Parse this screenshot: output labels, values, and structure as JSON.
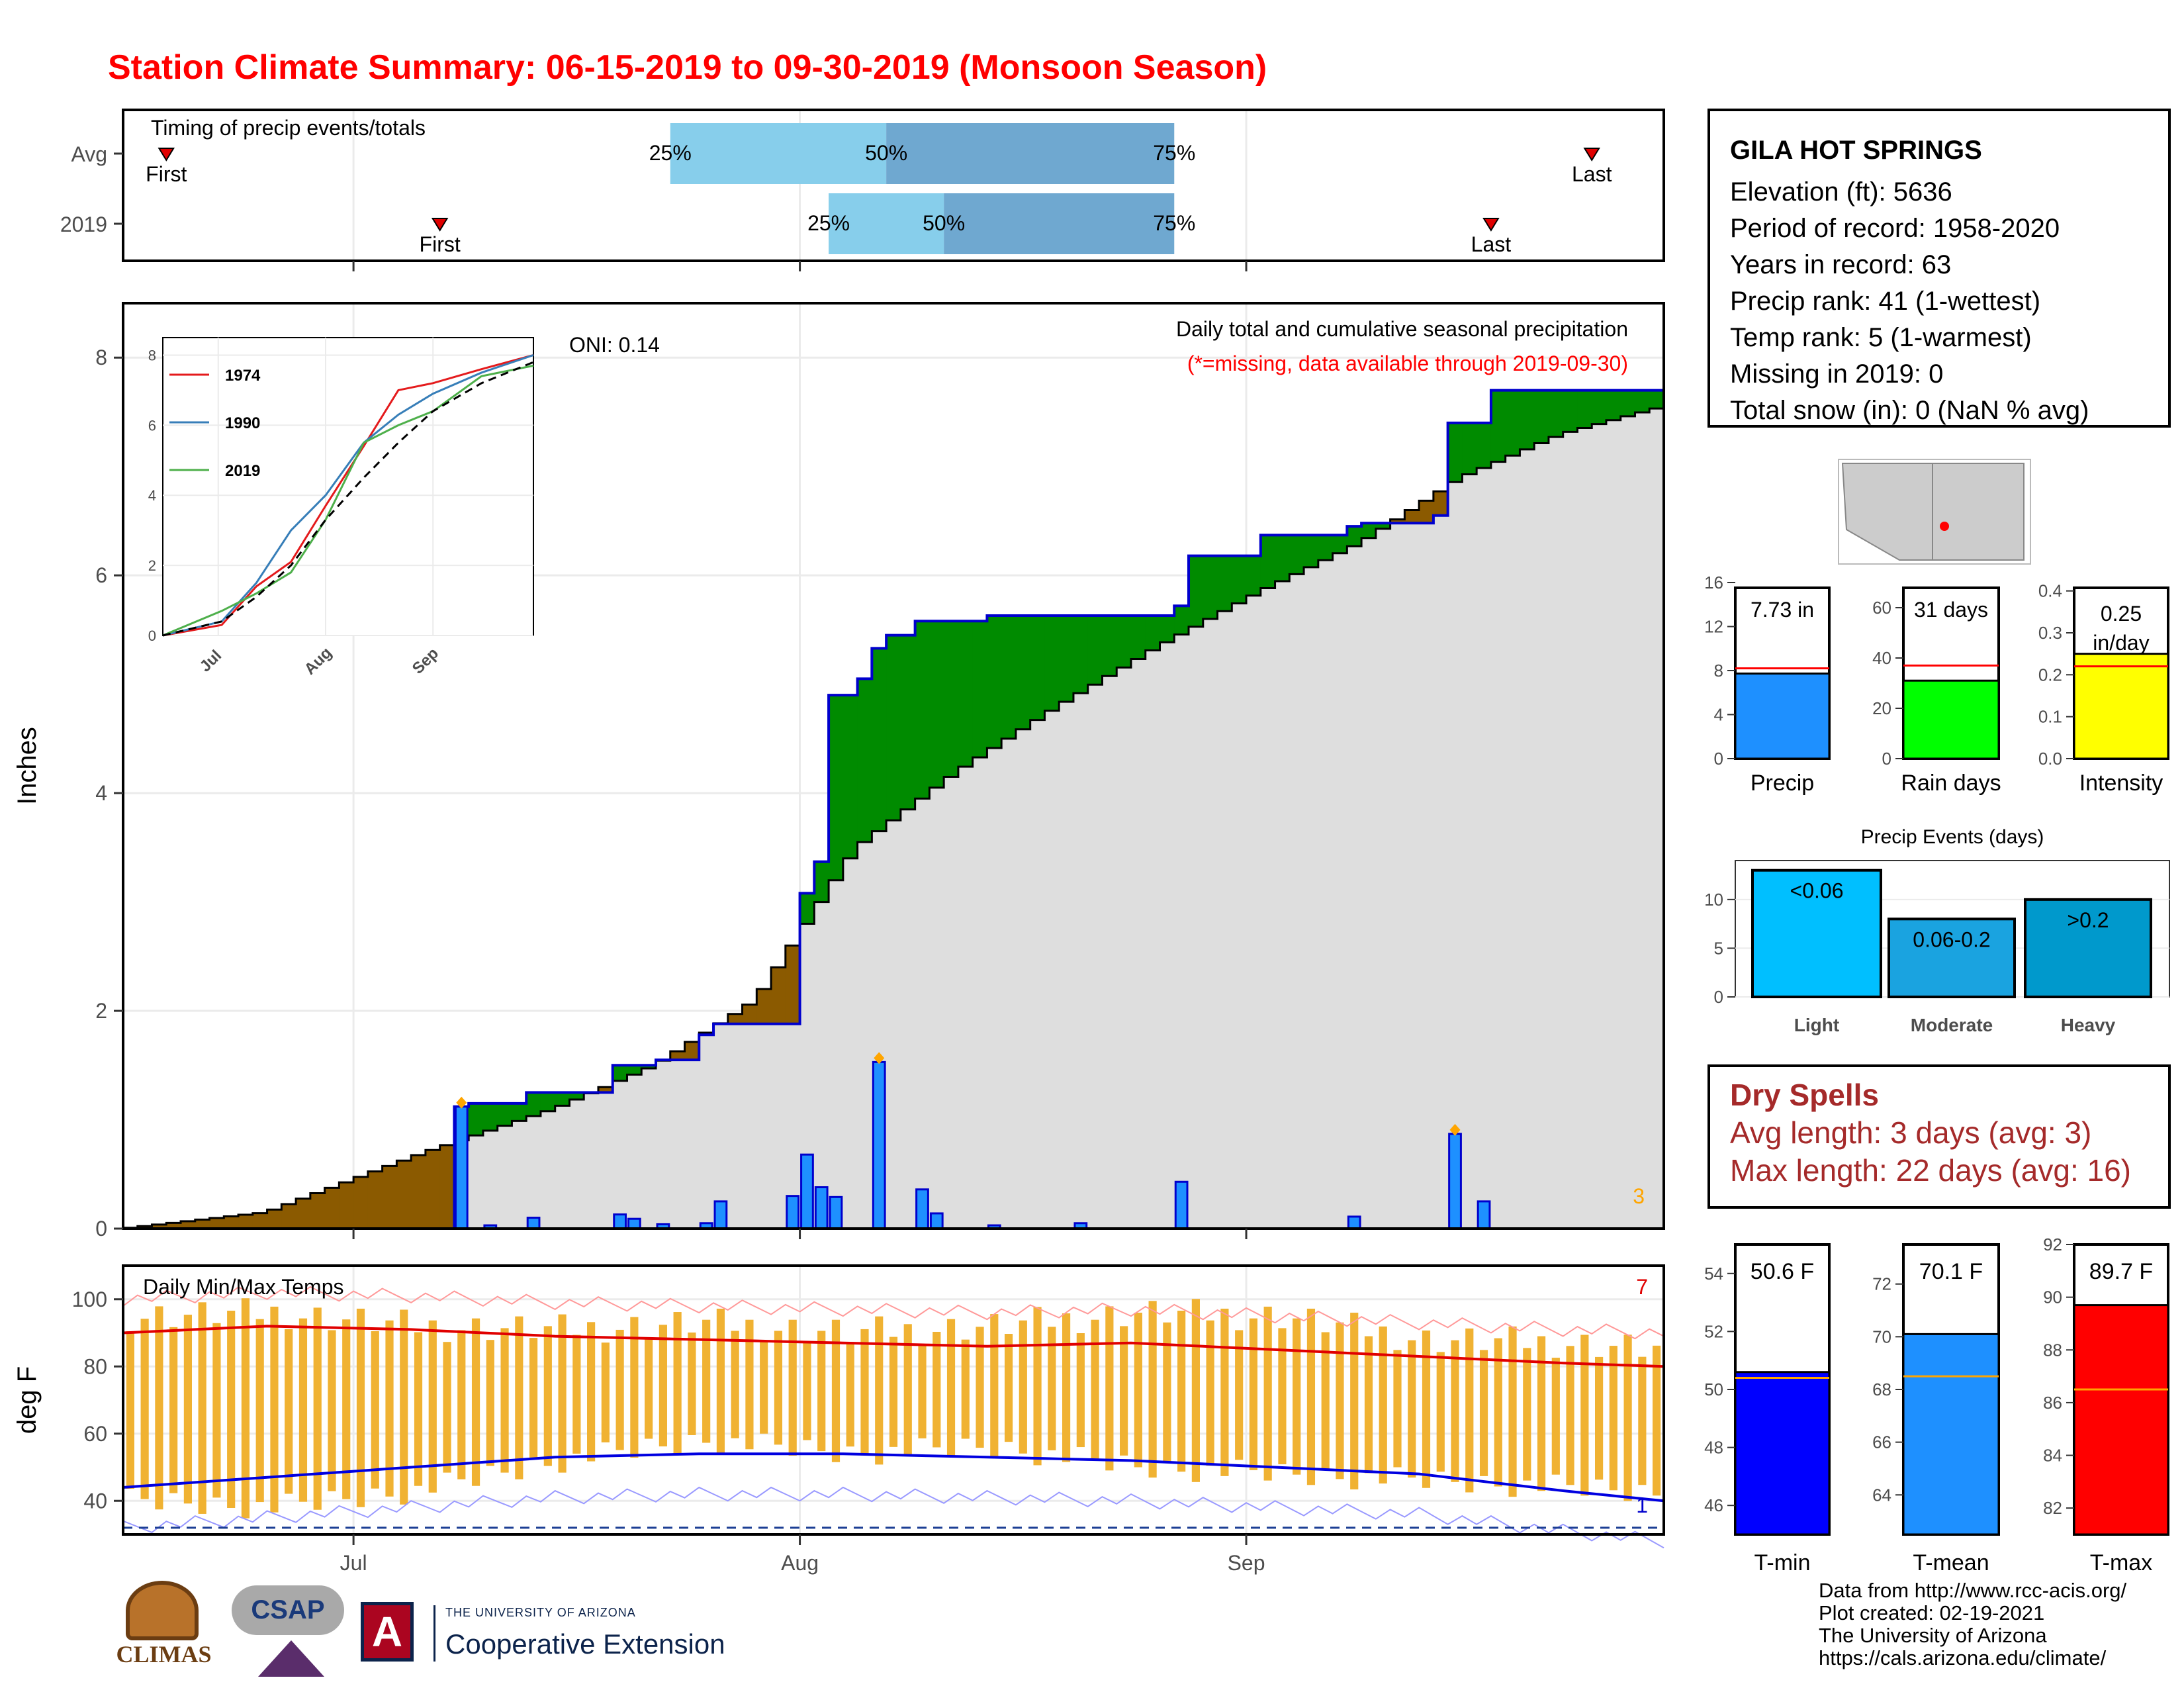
{
  "title": "Station Climate Summary: 06-15-2019 to 09-30-2019 (Monsoon Season)",
  "colors": {
    "title": "#ff0000",
    "deficit": "#8B5A00",
    "surplus": "#008B00",
    "climatology_fill": "#E0E0E0",
    "daily_bar": "#1E90FF",
    "missing_flag": "#FFA500",
    "temp_range": "#F0B232"
  },
  "timing": {
    "title": "Timing of precip events/totals",
    "rows": [
      {
        "label": "Avg",
        "first": "First",
        "last": "Last",
        "p25": "25%",
        "p50": "50%",
        "p75": "75%"
      },
      {
        "label": "2019",
        "first": "First",
        "last": "Last",
        "p25": "25%",
        "p50": "50%",
        "p75": "75%"
      }
    ]
  },
  "precip_panel": {
    "oni": "ONI: 0.14",
    "caption": "Daily total and cumulative seasonal precipitation",
    "caption_red": "(*=missing, data available through 2019-09-30)",
    "ylabel": "Inches",
    "yticks": [
      "0",
      "2",
      "4",
      "6",
      "8"
    ],
    "corner_count": "3",
    "inset": {
      "legend": [
        "1974",
        "1990",
        "2019"
      ],
      "legend_colors": [
        "#E41A1C",
        "#377EB8",
        "#4DAF4A"
      ],
      "yticks": [
        "0",
        "2",
        "4",
        "6",
        "8"
      ],
      "xticks": [
        "Jul",
        "Aug",
        "Sep"
      ]
    }
  },
  "temp_panel": {
    "title": "Daily Min/Max Temps",
    "ylabel": "deg F",
    "yticks": [
      "40",
      "60",
      "80",
      "100"
    ],
    "count_high": "7",
    "count_low": "1"
  },
  "xaxis": {
    "ticks": [
      "Jul",
      "Aug",
      "Sep"
    ]
  },
  "station": {
    "name": "GILA HOT SPRINGS",
    "lines": [
      "Elevation (ft): 5636",
      "Period of record: 1958-2020",
      "Years in record: 63",
      "Precip rank: 41 (1-wettest)",
      "Temp rank: 5 (1-warmest)",
      "Missing in 2019: 0",
      "Total snow (in): 0 (NaN % avg)"
    ]
  },
  "gauges": [
    {
      "label": "Precip",
      "value_text": "7.73 in",
      "yticks": [
        "0",
        "4",
        "8",
        "12",
        "16"
      ],
      "color": "#1E90FF"
    },
    {
      "label": "Rain days",
      "value_text": "31 days",
      "yticks": [
        "0",
        "20",
        "40",
        "60"
      ],
      "color": "#00FF00"
    },
    {
      "label": "Intensity",
      "value_text": "0.25 in/day",
      "yticks": [
        "0.0",
        "0.1",
        "0.2",
        "0.3",
        "0.4"
      ],
      "color": "#FFFF00"
    }
  ],
  "events": {
    "title": "Precip Events (days)",
    "yticks": [
      "0",
      "5",
      "10"
    ],
    "bars": [
      {
        "label": "Light",
        "text": "<0.06",
        "color": "#00BFFF"
      },
      {
        "label": "Moderate",
        "text": "0.06-0.2",
        "color": "#1AA3E0"
      },
      {
        "label": "Heavy",
        "text": ">0.2",
        "color": "#0099CC"
      }
    ]
  },
  "dry_spells": {
    "title": "Dry Spells",
    "avg": "Avg length: 3 days (avg: 3)",
    "max": "Max length: 22 days (avg: 16)"
  },
  "temp_gauges": [
    {
      "label": "T-min",
      "value_text": "50.6 F",
      "yticks": [
        "46",
        "48",
        "50",
        "52",
        "54"
      ],
      "color": "#0000FF"
    },
    {
      "label": "T-mean",
      "value_text": "70.1 F",
      "yticks": [
        "64",
        "66",
        "68",
        "70",
        "72"
      ],
      "color": "#1E90FF"
    },
    {
      "label": "T-max",
      "value_text": "89.7 F",
      "yticks": [
        "82",
        "84",
        "86",
        "88",
        "90",
        "92"
      ],
      "color": "#FF0000"
    }
  ],
  "credits": [
    "Data from http://www.rcc-acis.org/",
    "Plot created: 02-19-2021",
    "The University of Arizona",
    "https://cals.arizona.edu/climate/"
  ],
  "logos": {
    "climas": "CLIMAS",
    "csap": "CSAP",
    "ua_small": "THE UNIVERSITY OF ARIZONA",
    "ua_big": "Cooperative Extension"
  },
  "chart_data": [
    {
      "type": "bar",
      "name": "timing",
      "categories": [
        "Avg",
        "2019"
      ],
      "series": [
        {
          "name": "First",
          "values": [
            "2019-06-18",
            "2019-07-07"
          ]
        },
        {
          "name": "25%",
          "values": [
            "2019-07-23",
            "2019-08-03"
          ]
        },
        {
          "name": "50%",
          "values": [
            "2019-08-07",
            "2019-08-11"
          ]
        },
        {
          "name": "75%",
          "values": [
            "2019-08-27",
            "2019-08-27"
          ]
        },
        {
          "name": "Last",
          "values": [
            "2019-09-25",
            "2019-09-18"
          ]
        }
      ]
    },
    {
      "type": "area",
      "name": "cumulative precipitation",
      "ylabel": "Inches",
      "ylim": [
        0,
        8.5
      ],
      "xlim": [
        "2019-06-15",
        "2019-09-30"
      ],
      "series": [
        {
          "name": "2019",
          "x": [
            "2019-06-15",
            "2019-07-07",
            "2019-07-08",
            "2019-07-09",
            "2019-07-13",
            "2019-07-19",
            "2019-07-22",
            "2019-07-25",
            "2019-07-26",
            "2019-08-01",
            "2019-08-02",
            "2019-08-03",
            "2019-08-05",
            "2019-08-06",
            "2019-08-07",
            "2019-08-09",
            "2019-08-14",
            "2019-08-27",
            "2019-08-28",
            "2019-09-02",
            "2019-09-08",
            "2019-09-09",
            "2019-09-14",
            "2019-09-15",
            "2019-09-18",
            "2019-09-30"
          ],
          "values": [
            0,
            0,
            1.12,
            1.15,
            1.25,
            1.5,
            1.55,
            1.78,
            1.88,
            3.08,
            3.37,
            4.9,
            5.05,
            5.33,
            5.45,
            5.58,
            5.63,
            5.72,
            6.18,
            6.37,
            6.45,
            6.48,
            6.55,
            7.4,
            7.7,
            7.73
          ]
        },
        {
          "name": "Avg",
          "x": [
            "2019-06-15",
            "2019-06-25",
            "2019-07-06",
            "2019-07-15",
            "2019-07-22",
            "2019-07-29",
            "2019-08-05",
            "2019-08-12",
            "2019-08-19",
            "2019-08-26",
            "2019-09-02",
            "2019-09-09",
            "2019-09-16",
            "2019-09-23",
            "2019-09-30"
          ],
          "values": [
            0,
            0.15,
            0.7,
            1.1,
            1.5,
            2.1,
            3.5,
            4.2,
            4.8,
            5.35,
            5.85,
            6.3,
            6.9,
            7.3,
            7.55
          ]
        }
      ],
      "daily_bars": {
        "x": [
          "2019-07-08",
          "2019-07-10",
          "2019-07-13",
          "2019-07-19",
          "2019-07-20",
          "2019-07-22",
          "2019-07-25",
          "2019-07-26",
          "2019-07-31",
          "2019-08-01",
          "2019-08-02",
          "2019-08-03",
          "2019-08-06",
          "2019-08-09",
          "2019-08-10",
          "2019-08-14",
          "2019-08-20",
          "2019-08-27",
          "2019-09-08",
          "2019-09-15",
          "2019-09-17"
        ],
        "values": [
          1.12,
          0.03,
          0.1,
          0.13,
          0.09,
          0.04,
          0.05,
          0.25,
          0.3,
          0.68,
          0.38,
          0.29,
          1.53,
          0.36,
          0.14,
          0.03,
          0.05,
          0.43,
          0.11,
          0.87,
          0.25
        ]
      }
    },
    {
      "type": "line",
      "name": "inset cumulative",
      "xlim": [
        "2019-06-15",
        "2019-09-30"
      ],
      "ylim": [
        0,
        8.5
      ],
      "series": [
        {
          "name": "1974",
          "x": [
            "2019-06-15",
            "2019-07-02",
            "2019-07-12",
            "2019-07-22",
            "2019-08-01",
            "2019-08-12",
            "2019-08-22",
            "2019-09-01",
            "2019-09-15",
            "2019-09-30"
          ],
          "values": [
            0,
            0.3,
            1.4,
            2.1,
            3.7,
            5.4,
            7.0,
            7.2,
            7.6,
            8.0
          ]
        },
        {
          "name": "1990",
          "x": [
            "2019-06-15",
            "2019-07-02",
            "2019-07-12",
            "2019-07-22",
            "2019-08-01",
            "2019-08-12",
            "2019-08-22",
            "2019-09-01",
            "2019-09-15",
            "2019-09-30"
          ],
          "values": [
            0,
            0.4,
            1.5,
            3.0,
            4.0,
            5.5,
            6.3,
            6.9,
            7.5,
            8.0
          ]
        },
        {
          "name": "2019",
          "x": [
            "2019-06-15",
            "2019-07-02",
            "2019-07-12",
            "2019-07-22",
            "2019-08-01",
            "2019-08-12",
            "2019-08-22",
            "2019-09-01",
            "2019-09-15",
            "2019-09-30"
          ],
          "values": [
            0,
            0.7,
            1.2,
            1.8,
            3.3,
            5.5,
            6.0,
            6.4,
            7.4,
            7.7
          ]
        },
        {
          "name": "Avg",
          "x": [
            "2019-06-15",
            "2019-07-02",
            "2019-07-12",
            "2019-07-22",
            "2019-08-01",
            "2019-08-12",
            "2019-08-22",
            "2019-09-01",
            "2019-09-15",
            "2019-09-30"
          ],
          "values": [
            0,
            0.4,
            1.1,
            2.0,
            3.3,
            4.5,
            5.5,
            6.4,
            7.2,
            7.8
          ]
        }
      ]
    },
    {
      "type": "bar",
      "name": "daily temperatures",
      "ylabel": "deg F",
      "ylim": [
        30,
        110
      ],
      "x": [
        "2019-06-15",
        "2019-06-25",
        "2019-07-05",
        "2019-07-15",
        "2019-07-25",
        "2019-08-04",
        "2019-08-14",
        "2019-08-24",
        "2019-09-03",
        "2019-09-13",
        "2019-09-23",
        "2019-09-30"
      ],
      "series": [
        {
          "name": "daily max",
          "values": [
            95,
            96,
            92,
            91,
            93,
            90,
            92,
            96,
            95,
            88,
            87,
            85
          ]
        },
        {
          "name": "daily min",
          "values": [
            40,
            38,
            43,
            52,
            58,
            54,
            56,
            50,
            48,
            46,
            44,
            42
          ]
        },
        {
          "name": "avg max",
          "values": [
            90,
            92,
            91,
            89,
            88,
            87,
            86,
            87,
            85,
            83,
            81,
            80
          ]
        },
        {
          "name": "avg min",
          "values": [
            44,
            47,
            50,
            53,
            54,
            54,
            53,
            52,
            50,
            48,
            43,
            40
          ]
        }
      ]
    },
    {
      "type": "bar",
      "name": "Precip",
      "ylim": [
        0,
        16
      ],
      "values": [
        7.73
      ],
      "avg": 8.2
    },
    {
      "type": "bar",
      "name": "Rain days",
      "ylim": [
        0,
        70
      ],
      "values": [
        31
      ],
      "avg": 37
    },
    {
      "type": "bar",
      "name": "Intensity",
      "ylim": [
        0,
        0.42
      ],
      "values": [
        0.25
      ],
      "avg": 0.22
    },
    {
      "type": "bar",
      "name": "Precip Events (days)",
      "categories": [
        "Light",
        "Moderate",
        "Heavy"
      ],
      "values": [
        13,
        8,
        10
      ],
      "ylim": [
        0,
        14
      ]
    },
    {
      "type": "bar",
      "name": "T-min",
      "ylim": [
        45,
        55
      ],
      "values": [
        50.6
      ],
      "avg": 50.4
    },
    {
      "type": "bar",
      "name": "T-mean",
      "ylim": [
        62.5,
        73.5
      ],
      "values": [
        70.1
      ],
      "avg": 68.5
    },
    {
      "type": "bar",
      "name": "T-max",
      "ylim": [
        81,
        92
      ],
      "values": [
        89.7
      ],
      "avg": 86.5
    }
  ]
}
